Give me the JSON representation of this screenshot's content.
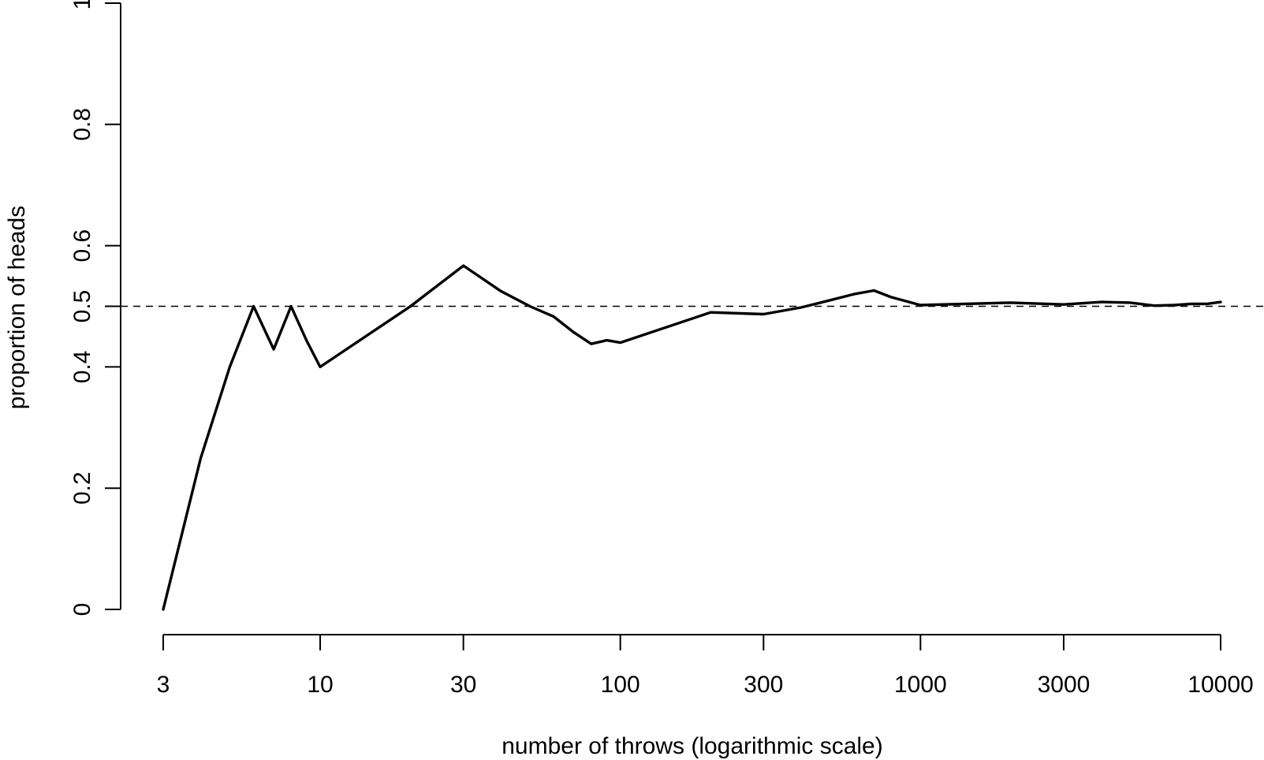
{
  "chart_data": {
    "type": "line",
    "xlabel": "number of throws (logarithmic scale)",
    "ylabel": "proportion of heads",
    "x_scale": "log",
    "xlim": [
      3,
      10000
    ],
    "ylim": [
      0,
      1
    ],
    "grid": false,
    "legend": "none",
    "x_ticks": [
      {
        "value": 3,
        "label": "3"
      },
      {
        "value": 10,
        "label": "10"
      },
      {
        "value": 30,
        "label": "30"
      },
      {
        "value": 100,
        "label": "100"
      },
      {
        "value": 300,
        "label": "300"
      },
      {
        "value": 1000,
        "label": "1000"
      },
      {
        "value": 3000,
        "label": "3000"
      },
      {
        "value": 10000,
        "label": "10000"
      }
    ],
    "y_ticks": [
      {
        "value": 0,
        "label": "0"
      },
      {
        "value": 0.2,
        "label": "0.2"
      },
      {
        "value": 0.4,
        "label": "0.4"
      },
      {
        "value": 0.5,
        "label": "0.5"
      },
      {
        "value": 0.6,
        "label": "0.6"
      },
      {
        "value": 0.8,
        "label": "0.8"
      },
      {
        "value": 1,
        "label": "1"
      }
    ],
    "reference_line": {
      "y": 0.5,
      "style": "dashed"
    },
    "series": [
      {
        "color": "#000000",
        "x": [
          3,
          4,
          5,
          6,
          7,
          8,
          9,
          10,
          20,
          30,
          40,
          50,
          60,
          70,
          80,
          90,
          100,
          200,
          300,
          400,
          500,
          600,
          700,
          800,
          1000,
          2000,
          3000,
          4000,
          5000,
          6000,
          7000,
          8000,
          9000,
          10000
        ],
        "y": [
          0,
          0.25,
          0.4,
          0.5,
          0.429,
          0.5,
          0.444,
          0.4,
          0.5,
          0.567,
          0.525,
          0.5,
          0.483,
          0.457,
          0.438,
          0.444,
          0.44,
          0.49,
          0.487,
          0.498,
          0.51,
          0.52,
          0.526,
          0.515,
          0.502,
          0.506,
          0.503,
          0.507,
          0.506,
          0.501,
          0.502,
          0.504,
          0.504,
          0.507
        ]
      }
    ]
  }
}
